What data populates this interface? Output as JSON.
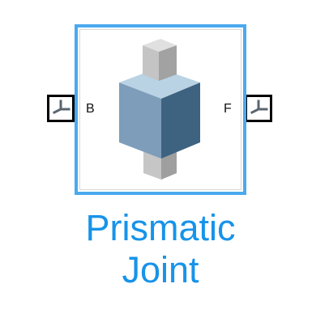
{
  "block": {
    "name_line1": "Prismatic",
    "name_line2": "Joint",
    "icon": "prismatic-joint-icon",
    "selected": true,
    "selection_color": "#4aa9ef",
    "name_color": "#1793ea"
  },
  "ports": {
    "left": {
      "label": "B",
      "icon": "frame-port-icon"
    },
    "right": {
      "label": "F",
      "icon": "frame-port-icon"
    }
  }
}
